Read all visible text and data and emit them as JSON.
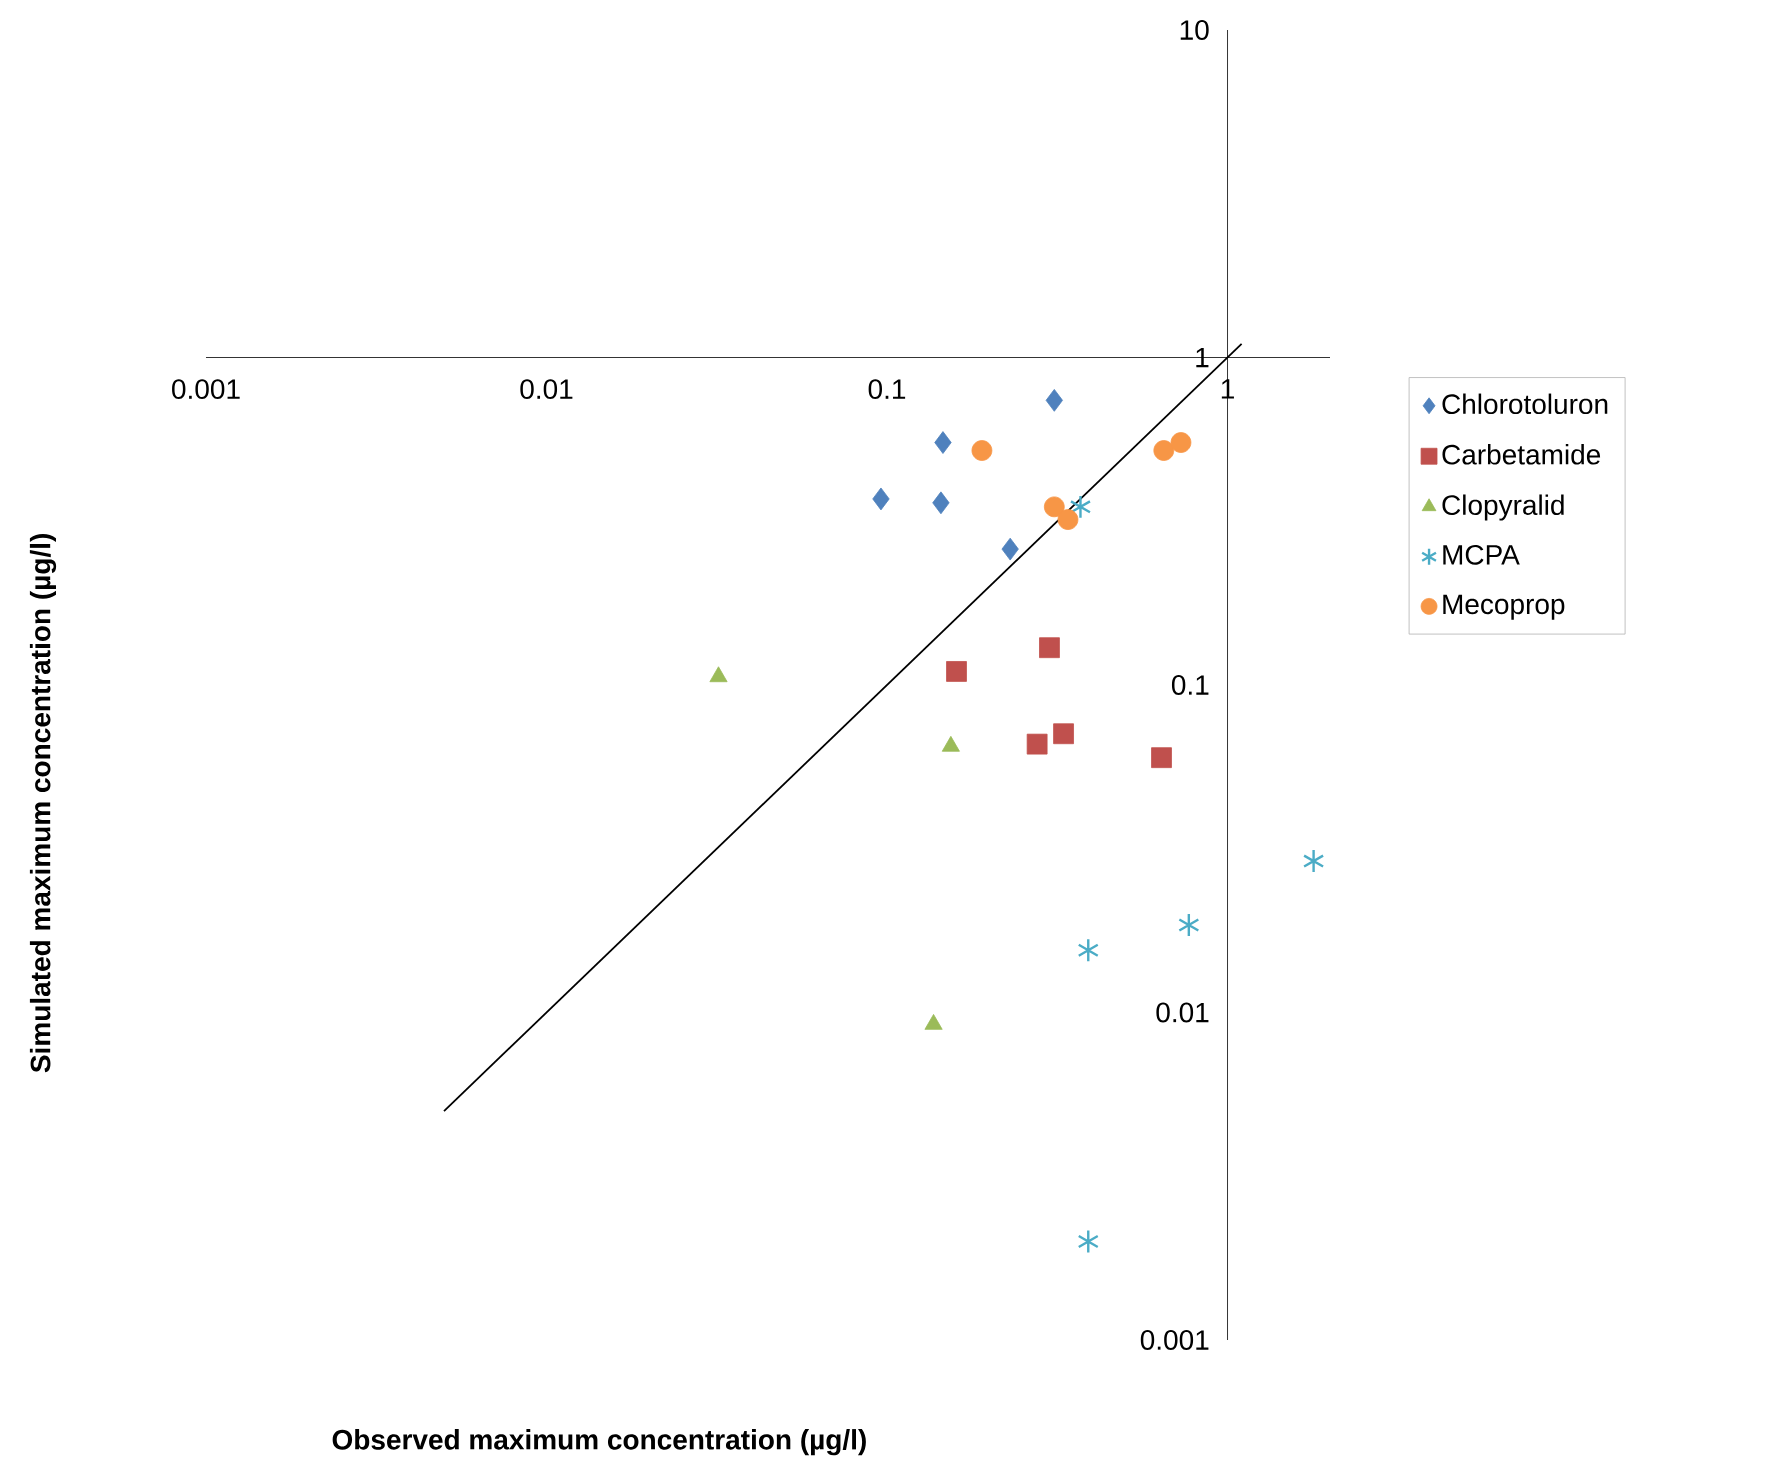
{
  "chart_data": {
    "type": "scatter",
    "xlabel": "Observed maximum concentration (µg/l)",
    "ylabel": "Simulated maximum concentration (µg/l)",
    "log": "xy",
    "xlim": [
      0.001,
      2
    ],
    "ylim": [
      0.001,
      10
    ],
    "xticks": [
      0.001,
      0.01,
      0.1,
      1
    ],
    "yticks": [
      0.001,
      0.01,
      0.1,
      1,
      10
    ],
    "legend": "right",
    "series": [
      {
        "name": "Chlorotoluron",
        "color": "#4f81bd",
        "marker": "diamond",
        "x": [
          0.31,
          0.146,
          0.096,
          0.144,
          0.23
        ],
        "values": [
          0.74,
          0.55,
          0.37,
          0.36,
          0.26
        ]
      },
      {
        "name": "Carbetamide",
        "color": "#c0504d",
        "marker": "square",
        "x": [
          0.16,
          0.3,
          0.276,
          0.33,
          0.64
        ],
        "values": [
          0.11,
          0.13,
          0.066,
          0.071,
          0.06
        ]
      },
      {
        "name": "Clopyralid",
        "color": "#9bbb59",
        "marker": "triangle",
        "x": [
          0.032,
          0.154,
          0.137
        ],
        "values": [
          0.106,
          0.065,
          0.0092
        ]
      },
      {
        "name": "MCPA",
        "color": "#4bacc6",
        "marker": "cross",
        "x": [
          0.37,
          1.79,
          0.77,
          0.39,
          0.39
        ],
        "values": [
          0.35,
          0.029,
          0.0185,
          0.0155,
          0.002
        ]
      },
      {
        "name": "Mecoprop",
        "color": "#f79646",
        "marker": "circle",
        "x": [
          0.19,
          0.31,
          0.34,
          0.65,
          0.73
        ],
        "values": [
          0.52,
          0.35,
          0.32,
          0.52,
          0.55
        ]
      },
      {
        "type": "line",
        "color": "#000000",
        "marker": "none",
        "x": [
          0.005,
          1.1
        ],
        "values": [
          0.005,
          1.1
        ]
      }
    ]
  }
}
